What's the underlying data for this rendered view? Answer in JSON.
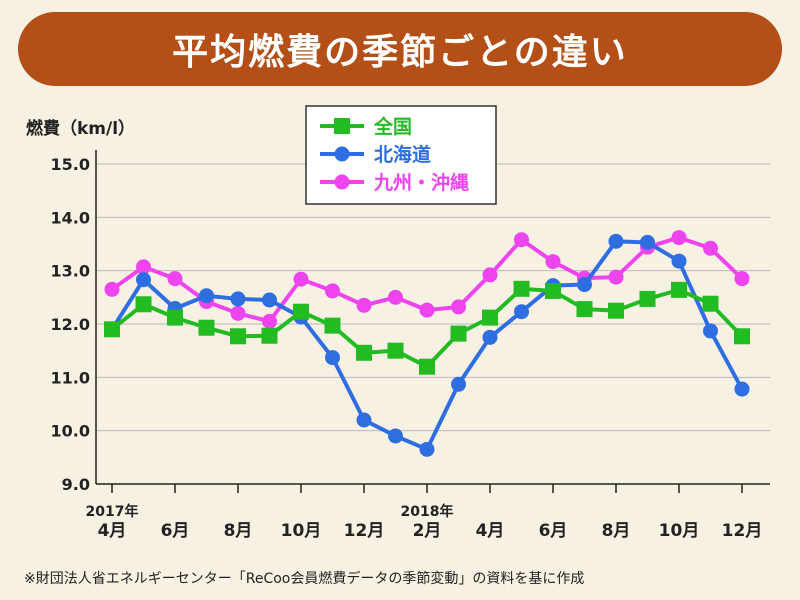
{
  "title": "平均燃費の季節ごとの違い",
  "footnote": "※財団法人省エネルギーセンター「ReCoo会員燃費データの季節変動」の資料を基に作成",
  "colors": {
    "banner": "#b34f17",
    "background": "#f7f1e3",
    "national": "#22bb22",
    "hokkaido": "#2e6ee0",
    "kyushu": "#ee44ee"
  },
  "chart_data": {
    "type": "line",
    "ylabel": "燃費（km/l）",
    "ylim": [
      9.0,
      15.0
    ],
    "yticks": [
      "15.0",
      "14.0",
      "13.0",
      "12.0",
      "11.0",
      "10.0",
      "9.0"
    ],
    "x_count": 21,
    "xticks": [
      {
        "index": 0,
        "label": "4月",
        "year": "2017年"
      },
      {
        "index": 2,
        "label": "6月"
      },
      {
        "index": 4,
        "label": "8月"
      },
      {
        "index": 6,
        "label": "10月"
      },
      {
        "index": 8,
        "label": "12月"
      },
      {
        "index": 10,
        "label": "2月",
        "year": "2018年"
      },
      {
        "index": 12,
        "label": "4月"
      },
      {
        "index": 14,
        "label": "6月"
      },
      {
        "index": 16,
        "label": "8月"
      },
      {
        "index": 18,
        "label": "10月"
      },
      {
        "index": 20,
        "label": "12月"
      }
    ],
    "series": [
      {
        "name": "全国",
        "marker": "square",
        "color": "#22bb22",
        "values": [
          11.9,
          12.37,
          12.12,
          11.93,
          11.77,
          11.78,
          12.23,
          11.97,
          11.46,
          11.5,
          11.2,
          11.82,
          12.12,
          12.66,
          12.62,
          12.28,
          12.25,
          12.47,
          12.64,
          12.38,
          11.77
        ]
      },
      {
        "name": "北海道",
        "marker": "circle",
        "color": "#2e6ee0",
        "values": [
          11.9,
          12.83,
          12.29,
          12.53,
          12.47,
          12.45,
          12.13,
          11.37,
          10.2,
          9.9,
          9.65,
          10.87,
          11.75,
          12.23,
          12.72,
          12.74,
          13.55,
          13.53,
          13.18,
          11.87,
          10.78
        ]
      },
      {
        "name": "九州・沖縄",
        "marker": "circle",
        "color": "#ee44ee",
        "values": [
          12.65,
          13.07,
          12.85,
          12.42,
          12.2,
          12.05,
          12.84,
          12.62,
          12.35,
          12.5,
          12.26,
          12.32,
          12.92,
          13.58,
          13.17,
          12.86,
          12.88,
          13.44,
          13.62,
          13.42,
          12.85
        ]
      }
    ]
  }
}
